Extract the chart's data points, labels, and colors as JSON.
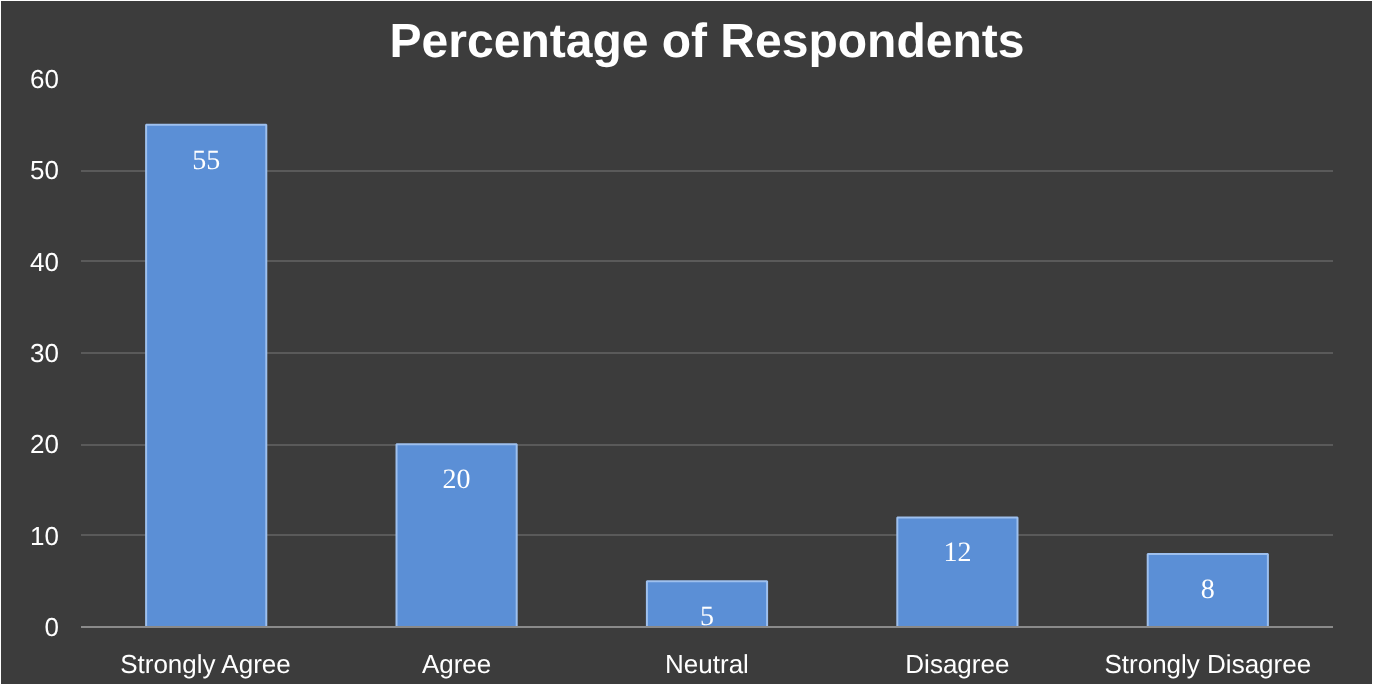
{
  "chart_data": {
    "type": "bar",
    "title": "Percentage of Respondents",
    "categories": [
      "Strongly Agree",
      "Agree",
      "Neutral",
      "Disagree",
      "Strongly Disagree"
    ],
    "values": [
      55,
      20,
      5,
      12,
      8
    ],
    "color": "#5b8fd6",
    "ylim": [
      0,
      60
    ],
    "yticks": [
      0,
      10,
      20,
      30,
      40,
      50,
      60
    ],
    "grid": "y",
    "data_labels": true
  }
}
